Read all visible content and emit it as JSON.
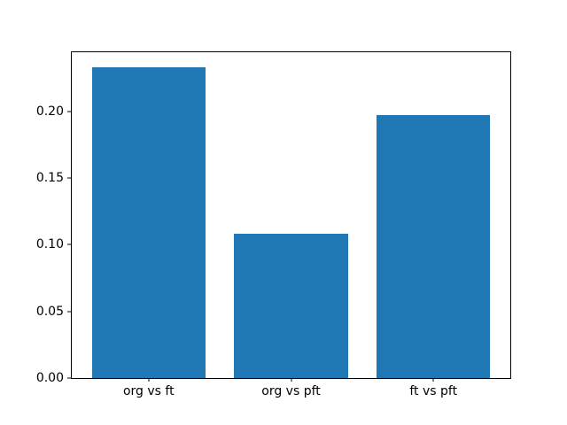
{
  "figure": {
    "background": "#ffffff"
  },
  "chart_data": {
    "type": "bar",
    "title": "",
    "xlabel": "",
    "ylabel": "",
    "categories": [
      "org vs ft",
      "org vs pft",
      "ft vs pft"
    ],
    "values": [
      0.233,
      0.108,
      0.197
    ],
    "bar_color": "#1f77b4",
    "bar_width": 0.8,
    "xlim": [
      -0.54,
      2.54
    ],
    "ylim": [
      0,
      0.2444
    ],
    "yticks": [
      {
        "value": 0.0,
        "label": "0.00"
      },
      {
        "value": 0.05,
        "label": "0.05"
      },
      {
        "value": 0.1,
        "label": "0.10"
      },
      {
        "value": 0.15,
        "label": "0.15"
      },
      {
        "value": 0.2,
        "label": "0.20"
      }
    ],
    "grid": false,
    "legend_visible": false
  }
}
